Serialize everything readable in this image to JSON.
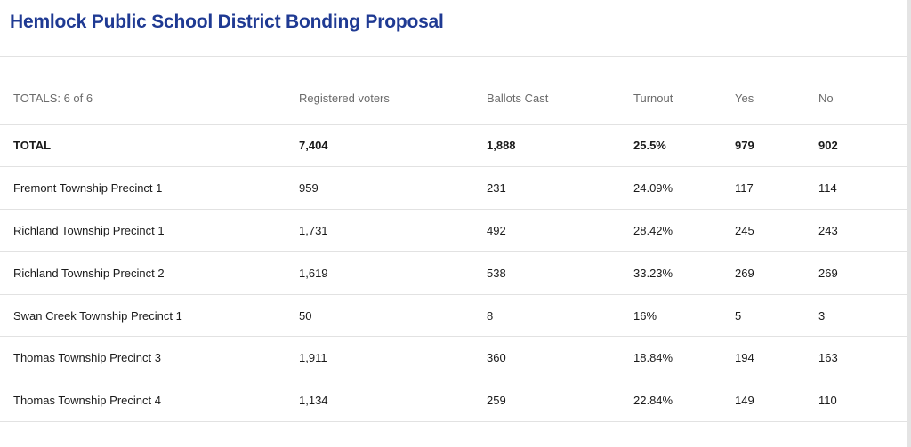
{
  "title": "Hemlock Public School District Bonding Proposal",
  "table": {
    "headers": [
      "TOTALS: 6 of 6",
      "Registered voters",
      "Ballots Cast",
      "Turnout",
      "Yes",
      "No"
    ],
    "rows": [
      [
        "TOTAL",
        "7,404",
        "1,888",
        "25.5%",
        "979",
        "902"
      ],
      [
        "Fremont Township Precinct 1",
        "959",
        "231",
        "24.09%",
        "117",
        "114"
      ],
      [
        "Richland Township Precinct 1",
        "1,731",
        "492",
        "28.42%",
        "245",
        "243"
      ],
      [
        "Richland Township Precinct 2",
        "1,619",
        "538",
        "33.23%",
        "269",
        "269"
      ],
      [
        "Swan Creek Township Precinct 1",
        "50",
        "8",
        "16%",
        "5",
        "3"
      ],
      [
        "Thomas Township Precinct 3",
        "1,911",
        "360",
        "18.84%",
        "194",
        "163"
      ],
      [
        "Thomas Township Precinct 4",
        "1,134",
        "259",
        "22.84%",
        "149",
        "110"
      ]
    ]
  }
}
